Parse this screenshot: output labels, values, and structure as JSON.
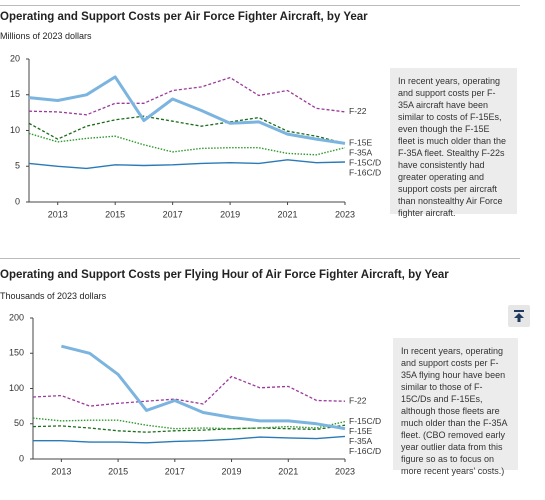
{
  "chart_data": [
    {
      "type": "line",
      "title": "Operating and Support Costs per Air Force Fighter Aircraft, by Year",
      "subtitle": "Millions of 2023 dollars",
      "annotation": "In recent years, operating and support costs per F-35A aircraft have been similar to costs of F-15Es, even though the F-15E fleet is much older than the F-35A fleet. Stealthy F-22s have consistently had greater operating and support costs per aircraft than nonstealthy Air Force fighter aircraft.",
      "x": [
        2012,
        2013,
        2014,
        2015,
        2016,
        2017,
        2018,
        2019,
        2020,
        2021,
        2022,
        2023
      ],
      "xlim": [
        2012,
        2023
      ],
      "xticks": [
        2013,
        2015,
        2017,
        2019,
        2021,
        2023
      ],
      "ylim": [
        0,
        20
      ],
      "yticks": [
        0,
        5,
        10,
        15,
        20
      ],
      "series": [
        {
          "name": "F-22",
          "color": "#9b3a9b",
          "style": "dashed",
          "values": [
            12.7,
            12.6,
            12.2,
            13.8,
            13.8,
            15.6,
            16.1,
            17.4,
            14.9,
            15.6,
            13.1,
            12.6
          ]
        },
        {
          "name": "F-15E",
          "color": "#1a6b1a",
          "style": "dashed",
          "values": [
            11.0,
            8.8,
            10.6,
            11.5,
            12.0,
            11.3,
            10.6,
            11.2,
            11.8,
            9.9,
            9.2,
            8.2
          ]
        },
        {
          "name": "F-35A",
          "color": "#7cb4e0",
          "style": "thick",
          "values": [
            14.6,
            14.2,
            15.0,
            17.5,
            11.4,
            14.4,
            12.8,
            11.0,
            11.2,
            9.5,
            8.8,
            8.2
          ]
        },
        {
          "name": "F-15C/D",
          "color": "#2e9a2e",
          "style": "dotted",
          "values": [
            9.6,
            8.4,
            8.9,
            9.2,
            8.0,
            7.0,
            7.5,
            7.6,
            7.6,
            6.8,
            6.6,
            7.6
          ]
        },
        {
          "name": "F-16C/D",
          "color": "#2a7ab8",
          "style": "solid",
          "values": [
            5.4,
            5.0,
            4.7,
            5.2,
            5.1,
            5.2,
            5.4,
            5.5,
            5.4,
            5.9,
            5.5,
            5.6
          ]
        }
      ]
    },
    {
      "type": "line",
      "title": "Operating and Support Costs per Flying Hour of Air Force Fighter Aircraft, by Year",
      "subtitle": "Thousands of 2023 dollars",
      "annotation": "In recent years, operating and support costs per F-35A flying hour have been similar to those of F-15C/Ds and F-15Es, although those fleets are much older than the F-35A fleet. (CBO removed early year outlier data from this figure so as to focus on more recent years' costs.)",
      "x": [
        2012,
        2013,
        2014,
        2015,
        2016,
        2017,
        2018,
        2019,
        2020,
        2021,
        2022,
        2023
      ],
      "xlim": [
        2012,
        2023
      ],
      "xticks": [
        2013,
        2015,
        2017,
        2019,
        2021,
        2023
      ],
      "ylim": [
        0,
        200
      ],
      "yticks": [
        0,
        50,
        100,
        150,
        200
      ],
      "series": [
        {
          "name": "F-22",
          "color": "#9b3a9b",
          "style": "dashed",
          "values": [
            88,
            90,
            75,
            79,
            82,
            85,
            78,
            117,
            101,
            103,
            83,
            82
          ]
        },
        {
          "name": "F-15E",
          "color": "#1a6b1a",
          "style": "dashed",
          "values": [
            46,
            47,
            44,
            40,
            38,
            40,
            41,
            43,
            44,
            43,
            42,
            48
          ]
        },
        {
          "name": "F-15C/D",
          "color": "#2e9a2e",
          "style": "dotted",
          "values": [
            58,
            54,
            55,
            55,
            48,
            43,
            44,
            43,
            44,
            46,
            44,
            53
          ]
        },
        {
          "name": "F-35A",
          "color": "#7cb4e0",
          "style": "thick",
          "values": [
            null,
            160,
            150,
            120,
            69,
            83,
            66,
            59,
            54,
            54,
            50,
            43
          ]
        },
        {
          "name": "F-16C/D",
          "color": "#2a7ab8",
          "style": "solid",
          "values": [
            26,
            26,
            24,
            24,
            23,
            25,
            26,
            28,
            31,
            30,
            29,
            32
          ]
        }
      ]
    }
  ]
}
